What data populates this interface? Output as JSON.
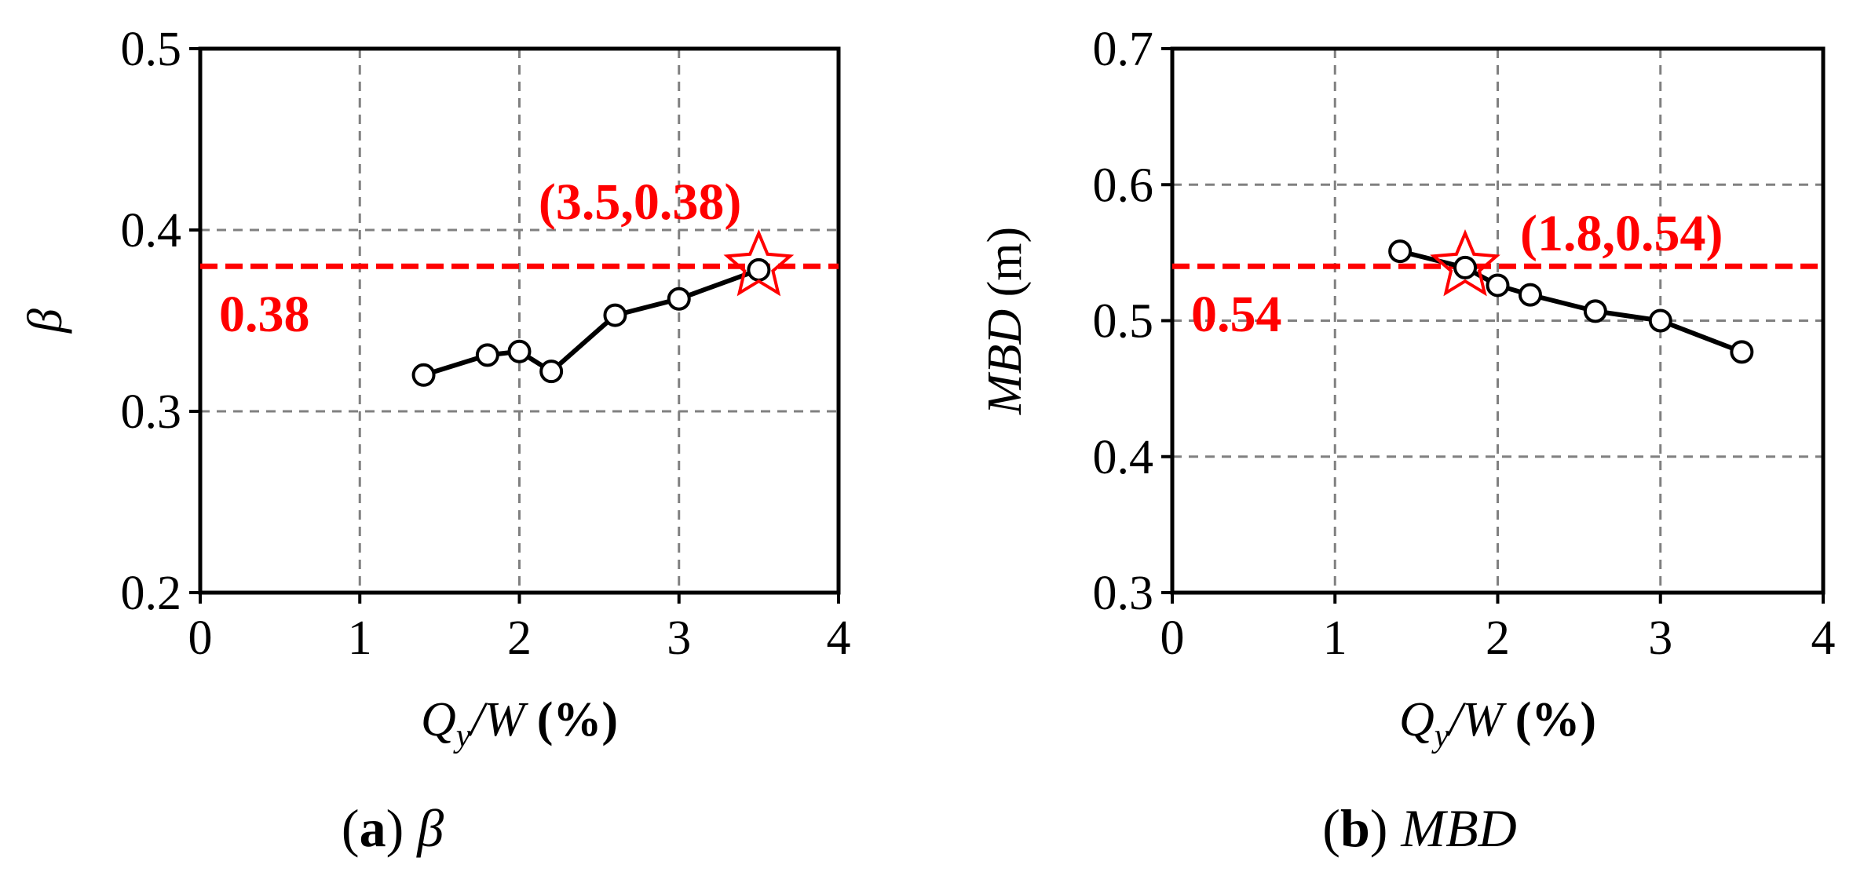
{
  "colors": {
    "series": "#000000",
    "highlight": "#ff0000",
    "grid": "#808080",
    "axis": "#000000",
    "background": "#ffffff"
  },
  "chart_data": [
    {
      "type": "line",
      "panel": "a",
      "caption": {
        "letter": "a",
        "symbol": "β"
      },
      "xlabel": {
        "main": "Q",
        "sub": "y",
        "rest": "/W",
        "unit": " (%)"
      },
      "ylabel": "β",
      "xlim": [
        0,
        4
      ],
      "ylim": [
        0.2,
        0.5
      ],
      "xticks": [
        0,
        1,
        2,
        3,
        4
      ],
      "yticks": [
        0.2,
        0.3,
        0.4,
        0.5
      ],
      "xtick_labels": [
        "0",
        "1",
        "2",
        "3",
        "4"
      ],
      "ytick_labels": [
        "0.2",
        "0.3",
        "0.4",
        "0.5"
      ],
      "grid": true,
      "series": [
        {
          "marker": "open-circle",
          "x": [
            1.4,
            1.8,
            2.0,
            2.2,
            2.6,
            3.0,
            3.5
          ],
          "y": [
            0.32,
            0.331,
            0.333,
            0.322,
            0.353,
            0.362,
            0.378
          ]
        }
      ],
      "reference_line": {
        "y": 0.38,
        "label": "0.38",
        "style": "dashed"
      },
      "optimum": {
        "x": 3.5,
        "y": 0.38,
        "marker": "open-star",
        "label": "(3.5,0.38)"
      }
    },
    {
      "type": "line",
      "panel": "b",
      "caption": {
        "letter": "b",
        "symbol": "MBD"
      },
      "xlabel": {
        "main": "Q",
        "sub": "y",
        "rest": "/W",
        "unit": " (%)"
      },
      "ylabel": {
        "main": "MBD",
        "unit": " (m)"
      },
      "xlim": [
        0,
        4
      ],
      "ylim": [
        0.3,
        0.7
      ],
      "xticks": [
        0,
        1,
        2,
        3,
        4
      ],
      "yticks": [
        0.3,
        0.4,
        0.5,
        0.6,
        0.7
      ],
      "xtick_labels": [
        "0",
        "1",
        "2",
        "3",
        "4"
      ],
      "ytick_labels": [
        "0.3",
        "0.4",
        "0.5",
        "0.6",
        "0.7"
      ],
      "grid": true,
      "series": [
        {
          "marker": "open-circle",
          "x": [
            1.4,
            1.8,
            2.0,
            2.2,
            2.6,
            3.0,
            3.5
          ],
          "y": [
            0.551,
            0.539,
            0.526,
            0.519,
            0.507,
            0.5,
            0.477
          ]
        }
      ],
      "reference_line": {
        "y": 0.54,
        "label": "0.54",
        "style": "dashed"
      },
      "optimum": {
        "x": 1.8,
        "y": 0.54,
        "marker": "open-star",
        "label": "(1.8,0.54)"
      }
    }
  ]
}
